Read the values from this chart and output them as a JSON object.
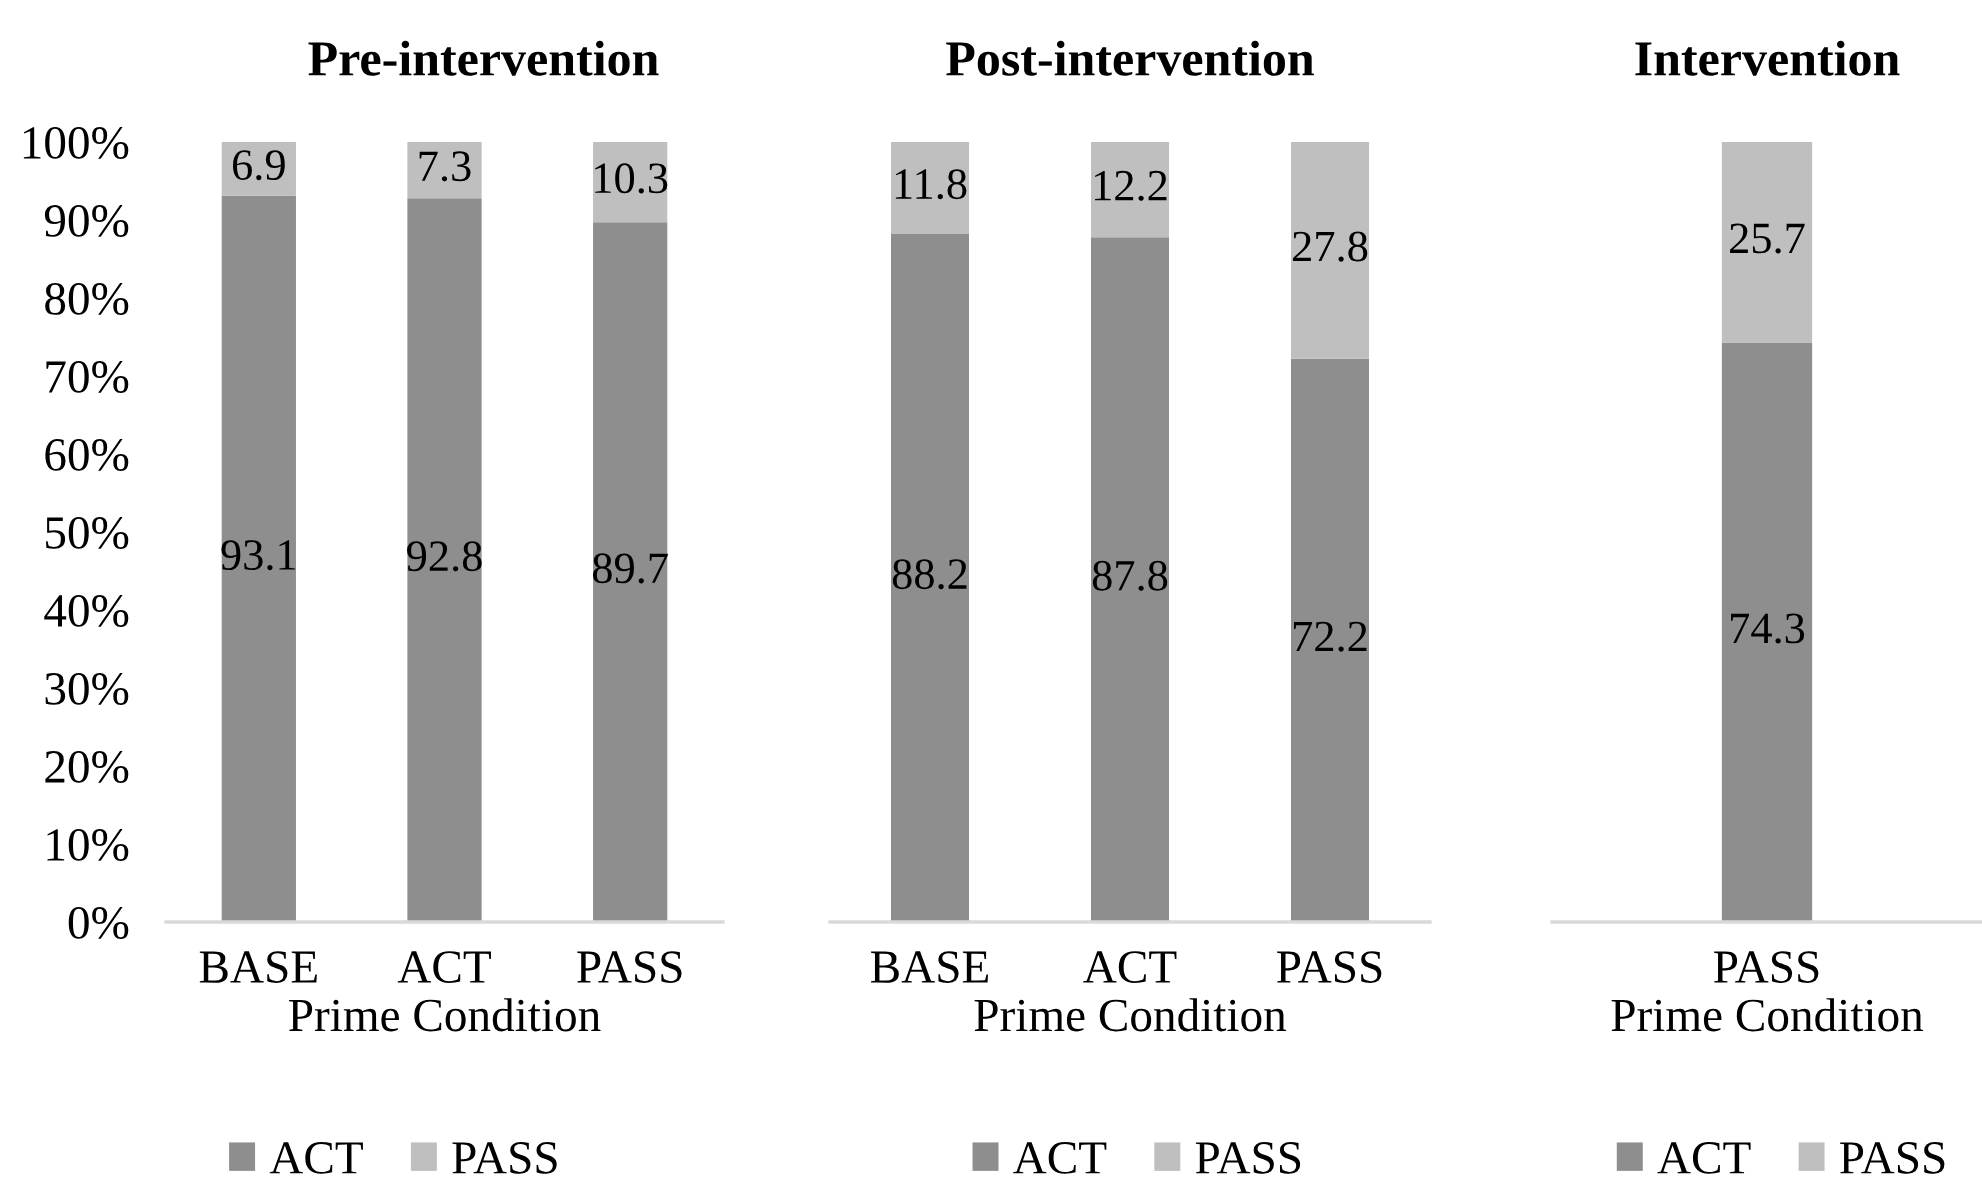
{
  "chart_data": [
    {
      "type": "bar",
      "stacked": true,
      "title": "Pre-intervention",
      "xlabel": "Prime Condition",
      "categories": [
        "BASE",
        "ACT",
        "PASS"
      ],
      "series": [
        {
          "name": "ACT",
          "color": "#8e8e8e",
          "values": [
            93.1,
            92.8,
            89.7
          ]
        },
        {
          "name": "PASS",
          "color": "#bfbfbf",
          "values": [
            6.9,
            7.3,
            10.3
          ]
        }
      ],
      "ylim": [
        0,
        100
      ],
      "yticks": [
        {
          "value": 0,
          "label": "0%"
        },
        {
          "value": 10,
          "label": "10%"
        },
        {
          "value": 20,
          "label": "20%"
        },
        {
          "value": 30,
          "label": "30%"
        },
        {
          "value": 40,
          "label": "40%"
        },
        {
          "value": 50,
          "label": "50%"
        },
        {
          "value": 60,
          "label": "60%"
        },
        {
          "value": 70,
          "label": "70%"
        },
        {
          "value": 80,
          "label": "80%"
        },
        {
          "value": 90,
          "label": "90%"
        },
        {
          "value": 100,
          "label": "100%"
        }
      ],
      "data_labels": true,
      "legend": "bottom"
    },
    {
      "type": "bar",
      "stacked": true,
      "title": "Post-intervention",
      "xlabel": "Prime Condition",
      "categories": [
        "BASE",
        "ACT",
        "PASS"
      ],
      "series": [
        {
          "name": "ACT",
          "color": "#8e8e8e",
          "values": [
            88.2,
            87.8,
            72.2
          ]
        },
        {
          "name": "PASS",
          "color": "#bfbfbf",
          "values": [
            11.8,
            12.2,
            27.8
          ]
        }
      ],
      "ylim": [
        0,
        100
      ],
      "tick_labels": "x",
      "data_labels": true,
      "legend": "bottom"
    },
    {
      "type": "bar",
      "stacked": true,
      "title": "Intervention",
      "xlabel": "Prime Condition",
      "categories": [
        "PASS"
      ],
      "series": [
        {
          "name": "ACT",
          "color": "#8e8e8e",
          "values": [
            74.3
          ]
        },
        {
          "name": "PASS",
          "color": "#bfbfbf",
          "values": [
            25.7
          ]
        }
      ],
      "ylim": [
        0,
        100
      ],
      "tick_labels": "x",
      "data_labels": true,
      "legend": "bottom"
    }
  ]
}
